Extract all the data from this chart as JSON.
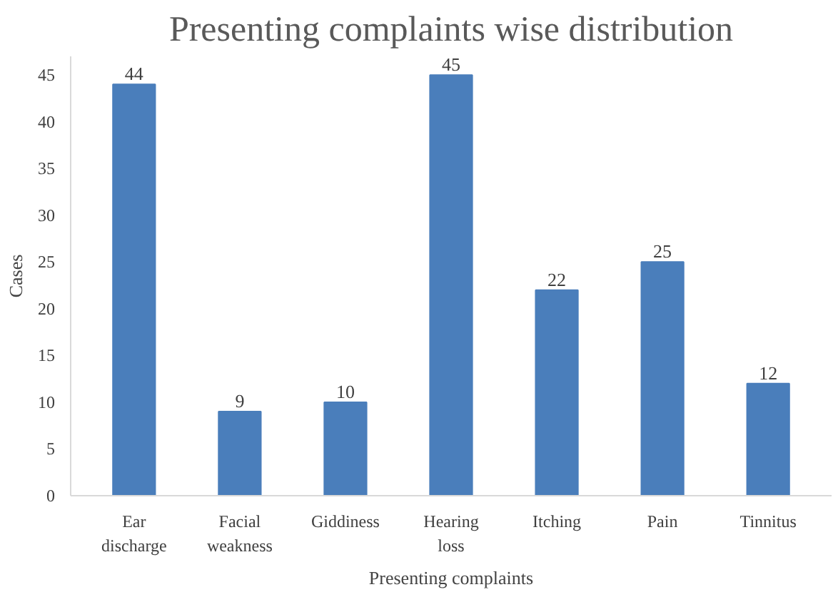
{
  "chart_data": {
    "type": "bar",
    "title": "Presenting complaints wise distribution",
    "xlabel": "Presenting complaints",
    "ylabel": "Cases",
    "categories": [
      "Ear\ndischarge",
      "Facial\nweakness",
      "Giddiness",
      "Hearing\nloss",
      "Itching",
      "Pain",
      "Tinnitus"
    ],
    "values": [
      44,
      9,
      10,
      45,
      22,
      25,
      12
    ],
    "color": "#4a7ebb",
    "ylim": [
      0,
      47
    ],
    "yticks": [
      0,
      5,
      10,
      15,
      20,
      25,
      30,
      35,
      40,
      45
    ],
    "grid": false,
    "data_labels": true
  }
}
